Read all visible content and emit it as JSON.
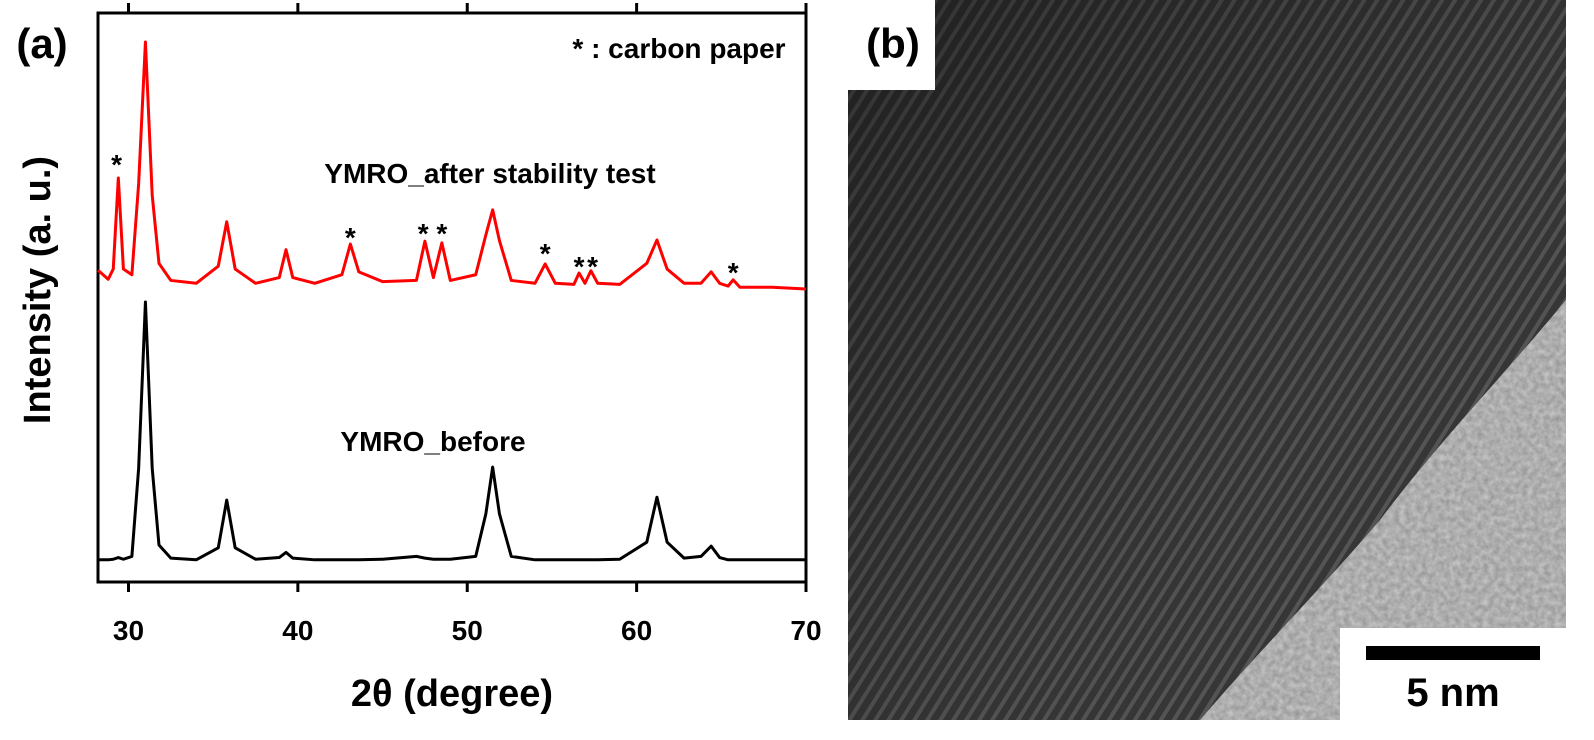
{
  "chart_data": {
    "type": "line",
    "panel_label": "(a)",
    "note": "* : carbon paper",
    "x_label": "2θ (degree)",
    "y_label": "Intensity (a. u.)",
    "xlim": [
      28.2,
      70
    ],
    "xticks": [
      30,
      40,
      50,
      60,
      70
    ],
    "ylim": [
      0,
      100
    ],
    "x": [
      28.2,
      28.8,
      29.1,
      29.4,
      29.7,
      30.2,
      30.6,
      31.0,
      31.4,
      31.8,
      32.5,
      34,
      35.3,
      35.8,
      36.3,
      37.5,
      38.9,
      39.3,
      39.7,
      41,
      42.6,
      43.1,
      43.6,
      45,
      47,
      47.5,
      48,
      48.5,
      49,
      50.5,
      51.1,
      51.5,
      51.9,
      52.6,
      54,
      54.6,
      55.2,
      56.3,
      56.6,
      56.95,
      57.3,
      57.7,
      59,
      60.6,
      61.2,
      61.8,
      62.8,
      63.8,
      64.4,
      64.9,
      65.4,
      65.7,
      66.1,
      68,
      70
    ],
    "series": [
      {
        "name": "YMRO_after stability test",
        "color": "#ff0000",
        "values": [
          54.8,
          53.2,
          55,
          71.0,
          55,
          54,
          70,
          94.9,
          68,
          56,
          53,
          52.5,
          55.5,
          63.3,
          55,
          52.5,
          53.5,
          58.4,
          53.5,
          52.5,
          54,
          59.4,
          54.5,
          52.8,
          53,
          59.9,
          53.5,
          59.6,
          53,
          54,
          61,
          65.4,
          60,
          53,
          52.5,
          55.9,
          52.5,
          52.3,
          54.3,
          52.5,
          54.7,
          52.5,
          52.3,
          56,
          60.1,
          55,
          52.5,
          52.5,
          54.5,
          52.5,
          52,
          53.1,
          51.8,
          51.8,
          51.5
        ]
      },
      {
        "name": "YMRO_before",
        "color": "#000000",
        "values": [
          3.9,
          3.9,
          4.0,
          4.3,
          4.0,
          4.5,
          20,
          49.2,
          20,
          6.5,
          4.2,
          3.9,
          6,
          14.4,
          6,
          4.0,
          4.3,
          5.2,
          4.2,
          3.9,
          3.9,
          3.9,
          3.9,
          4.0,
          4.5,
          4.2,
          4.0,
          4.0,
          4.0,
          4.5,
          12,
          20.2,
          12,
          4.5,
          3.9,
          3.9,
          3.9,
          3.9,
          3.9,
          3.9,
          3.9,
          3.9,
          4.0,
          7,
          14.9,
          7,
          4.2,
          4.5,
          6.3,
          4.3,
          3.9,
          3.9,
          3.9,
          3.9,
          3.9
        ]
      }
    ],
    "annotations": [
      {
        "text": "*",
        "x": 29.3,
        "y": 74.2
      },
      {
        "text": "*",
        "x": 43.1,
        "y": 61.3
      },
      {
        "text": "*",
        "x": 47.4,
        "y": 62
      },
      {
        "text": "*",
        "x": 48.5,
        "y": 62
      },
      {
        "text": "*",
        "x": 54.6,
        "y": 58.5
      },
      {
        "text": "*",
        "x": 56.6,
        "y": 56.2
      },
      {
        "text": "*",
        "x": 57.4,
        "y": 56.2
      },
      {
        "text": "*",
        "x": 65.7,
        "y": 55.2
      }
    ]
  },
  "image_panel": {
    "panel_label": "(b)",
    "scale_bar_label": "5 nm"
  }
}
